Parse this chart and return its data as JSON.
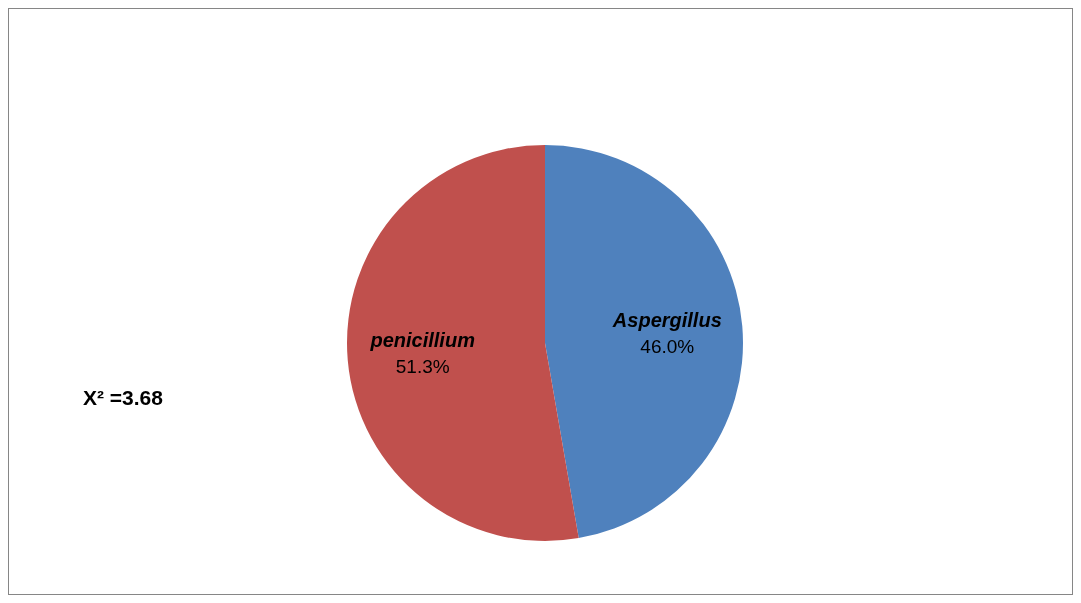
{
  "chart_data": {
    "type": "pie",
    "categories": [
      "Aspergillus",
      "penicillium"
    ],
    "values": [
      46.0,
      51.3
    ],
    "colors": [
      "#4f81bd",
      "#c0504d"
    ],
    "value_labels": [
      "46.0%",
      "51.3%"
    ],
    "annotations": [
      "X² =3.68"
    ],
    "legend": false
  }
}
